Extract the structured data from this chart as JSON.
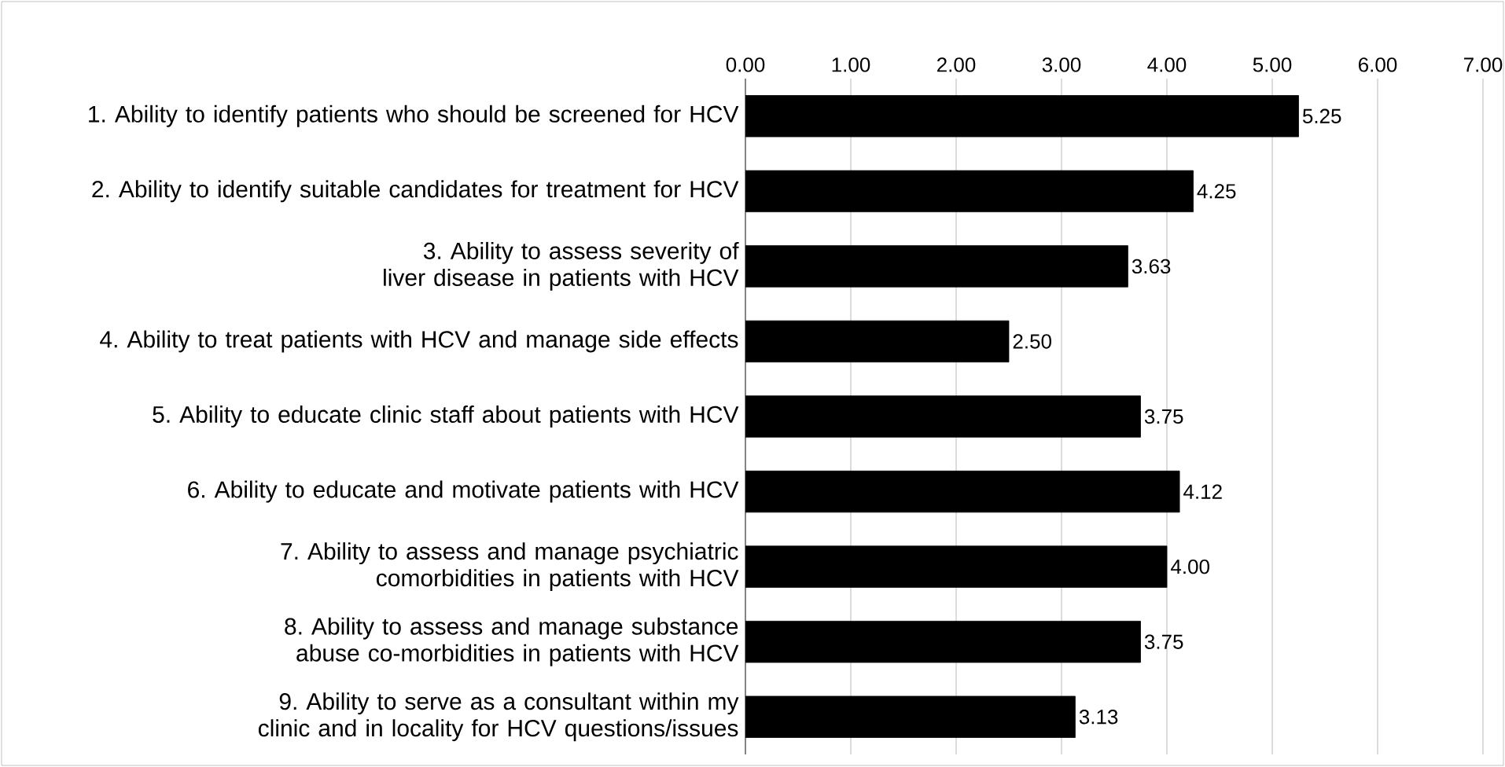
{
  "chart_data": {
    "type": "bar",
    "orientation": "horizontal",
    "color": "#000000",
    "categories": [
      "1. Ability to identify patients who should be screened for HCV",
      "2. Ability to identify suitable candidates for treatment for HCV",
      "3. Ability to assess severity of liver disease in patients with HCV",
      "4. Ability to treat patients with HCV and manage side effects",
      "5. Ability to educate clinic staff about patients with HCV",
      "6. Ability to educate and motivate patients with HCV",
      "7. Ability to assess and manage psychiatric comorbidities in patients with HCV",
      "8. Ability to assess and manage substance abuse co-morbidities in patients with HCV",
      "9. Ability to serve as a consultant within my clinic and in locality for HCV questions/issues"
    ],
    "values": [
      5.25,
      4.25,
      3.63,
      2.5,
      3.75,
      4.12,
      4.0,
      3.75,
      3.13
    ],
    "value_labels": [
      "5.25",
      "4.25",
      "3.63",
      "2.50",
      "3.75",
      "4.12",
      "4.00",
      "3.75",
      "3.13"
    ],
    "xlim": [
      0,
      7
    ],
    "xticks": [
      {
        "value": 0,
        "label": "0.00"
      },
      {
        "value": 1,
        "label": "1.00"
      },
      {
        "value": 2,
        "label": "2.00"
      },
      {
        "value": 3,
        "label": "3.00"
      },
      {
        "value": 4,
        "label": "4.00"
      },
      {
        "value": 5,
        "label": "5.00"
      },
      {
        "value": 6,
        "label": "6.00"
      },
      {
        "value": 7,
        "label": "7.00"
      }
    ],
    "grid": "x"
  }
}
